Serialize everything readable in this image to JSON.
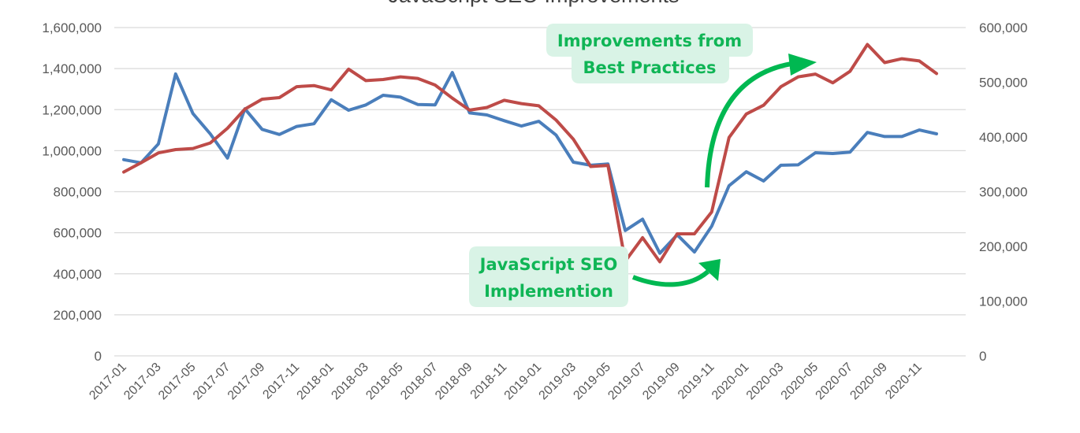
{
  "chart_data": {
    "type": "line",
    "title": "JavaScript SEO Improvements",
    "x": [
      "2017-01",
      "2017-02",
      "2017-03",
      "2017-04",
      "2017-05",
      "2017-06",
      "2017-07",
      "2017-08",
      "2017-09",
      "2017-10",
      "2017-11",
      "2017-12",
      "2018-01",
      "2018-02",
      "2018-03",
      "2018-04",
      "2018-05",
      "2018-06",
      "2018-07",
      "2018-08",
      "2018-09",
      "2018-10",
      "2018-11",
      "2018-12",
      "2019-01",
      "2019-02",
      "2019-03",
      "2019-04",
      "2019-05",
      "2019-06",
      "2019-07",
      "2019-08",
      "2019-09",
      "2019-10",
      "2019-11",
      "2019-12",
      "2020-01",
      "2020-02",
      "2020-03",
      "2020-04",
      "2020-05",
      "2020-06",
      "2020-07",
      "2020-08",
      "2020-09",
      "2020-10",
      "2020-11",
      "2020-12"
    ],
    "x_tick_labels": [
      "2017-01",
      "2017-03",
      "2017-05",
      "2017-07",
      "2017-09",
      "2017-11",
      "2018-01",
      "2018-03",
      "2018-05",
      "2018-07",
      "2018-09",
      "2018-11",
      "2019-01",
      "2019-03",
      "2019-05",
      "2019-07",
      "2019-09",
      "2019-11",
      "2020-01",
      "2020-03",
      "2020-05",
      "2020-07",
      "2020-09",
      "2020-11"
    ],
    "y_left": {
      "range": [
        0,
        1600000
      ],
      "ticks": [
        "0",
        "200,000",
        "400,000",
        "600,000",
        "800,000",
        "1,000,000",
        "1,200,000",
        "1,400,000",
        "1,600,000"
      ]
    },
    "y_right": {
      "range": [
        0,
        600000
      ],
      "ticks": [
        "0",
        "100,000",
        "200,000",
        "300,000",
        "400,000",
        "500,000",
        "600,000"
      ]
    },
    "grid": true,
    "series": [
      {
        "axis": "left",
        "color": "#4a7ebb",
        "values": [
          956000,
          941000,
          1033000,
          1374000,
          1181000,
          1082000,
          964000,
          1204000,
          1104000,
          1079000,
          1118000,
          1131000,
          1248000,
          1197000,
          1223000,
          1270000,
          1261000,
          1225000,
          1223000,
          1381000,
          1184000,
          1174000,
          1146000,
          1120000,
          1143000,
          1076000,
          944000,
          929000,
          935000,
          611000,
          666000,
          500000,
          590000,
          506000,
          632000,
          829000,
          897000,
          852000,
          929000,
          931000,
          990000,
          986000,
          993000,
          1089000,
          1069000,
          1069000,
          1101000,
          1082000
        ]
      },
      {
        "axis": "right",
        "color": "#be4b48",
        "values": [
          336000,
          353000,
          371000,
          377000,
          379000,
          389000,
          416000,
          451000,
          469000,
          472000,
          492000,
          494000,
          486000,
          524000,
          503000,
          505000,
          510000,
          507000,
          495000,
          471000,
          449000,
          454000,
          467000,
          461000,
          457000,
          431000,
          396000,
          346000,
          348000,
          173000,
          216000,
          172000,
          223000,
          223000,
          263000,
          399000,
          442000,
          458000,
          492000,
          510000,
          515000,
          499000,
          520000,
          569000,
          536000,
          543000,
          539000,
          516000
        ]
      }
    ],
    "annotations": [
      {
        "lines": [
          "Improvements from",
          "Best Practices"
        ]
      },
      {
        "lines": [
          "JavaScript SEO",
          "Implemention"
        ]
      }
    ],
    "annotation_color": "#10b556",
    "annotation_bg": "#d9f3e6"
  }
}
